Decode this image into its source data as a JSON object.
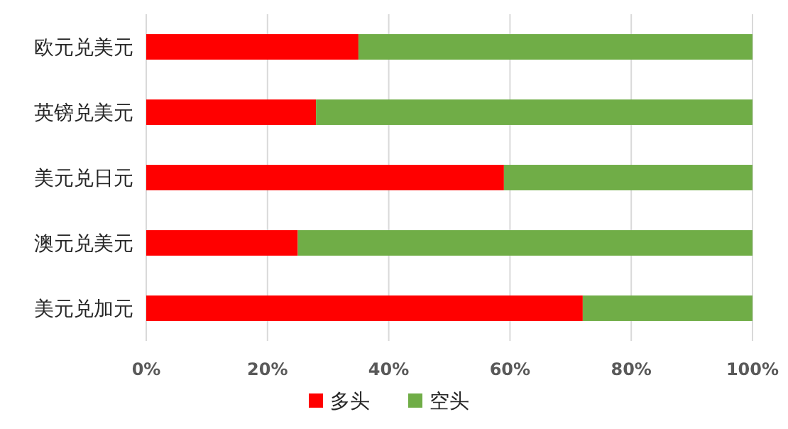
{
  "chart_data": {
    "type": "bar",
    "orientation": "horizontal",
    "stacked": true,
    "categories": [
      "欧元兑美元",
      "英镑兑美元",
      "美元兑日元",
      "澳元兑美元",
      "美元兑加元"
    ],
    "series": [
      {
        "name": "多头",
        "color": "#ff0000",
        "values": [
          35,
          28,
          59,
          25,
          72
        ]
      },
      {
        "name": "空头",
        "color": "#70ad47",
        "values": [
          65,
          72,
          41,
          75,
          28
        ]
      }
    ],
    "xlim": [
      0,
      100
    ],
    "xticks": [
      {
        "value": 0,
        "label": "0%"
      },
      {
        "value": 20,
        "label": "20%"
      },
      {
        "value": 40,
        "label": "40%"
      },
      {
        "value": 60,
        "label": "60%"
      },
      {
        "value": 80,
        "label": "80%"
      },
      {
        "value": 100,
        "label": "100%"
      }
    ],
    "grid": "x",
    "legend": "bottom"
  }
}
